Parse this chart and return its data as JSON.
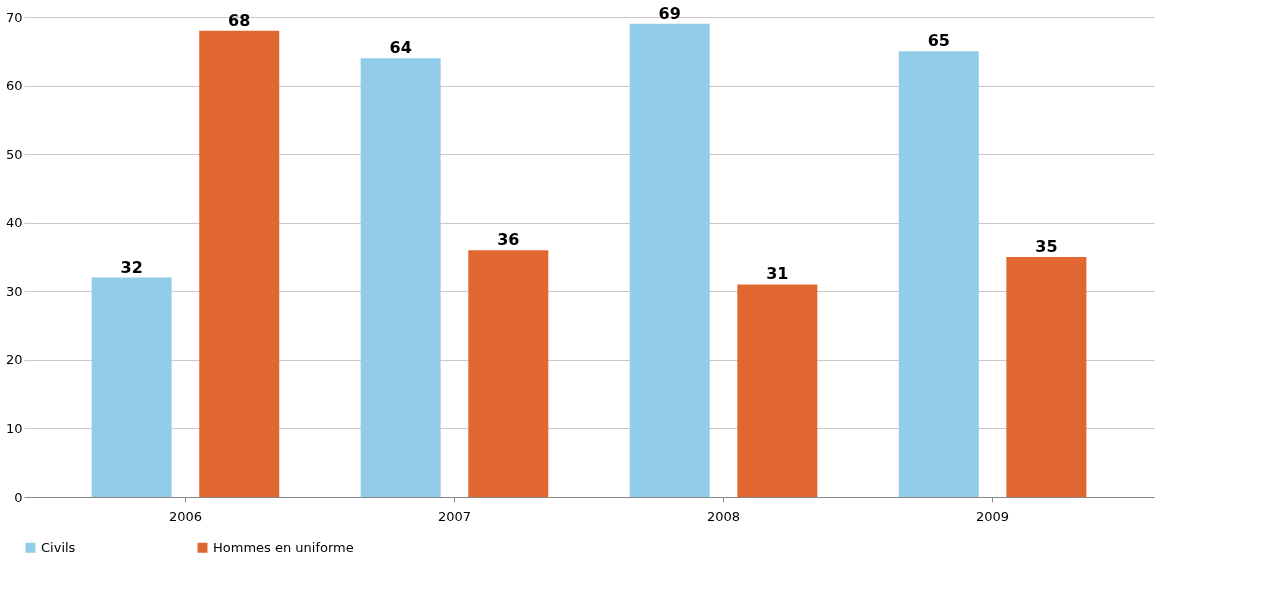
{
  "chart_data": {
    "type": "bar",
    "categories": [
      "2006",
      "2007",
      "2008",
      "2009"
    ],
    "series": [
      {
        "name": "Civils",
        "color": "#92cce8",
        "values": [
          32,
          64,
          69,
          65
        ]
      },
      {
        "name": "Hommes en uniforme",
        "color": "#e06830",
        "values": [
          68,
          36,
          31,
          35
        ]
      }
    ],
    "ylim": [
      0,
      70
    ],
    "yticks": [
      0,
      10,
      20,
      30,
      40,
      50,
      60,
      70
    ],
    "grid": "y",
    "legend": "bottom",
    "data_labels": true
  }
}
